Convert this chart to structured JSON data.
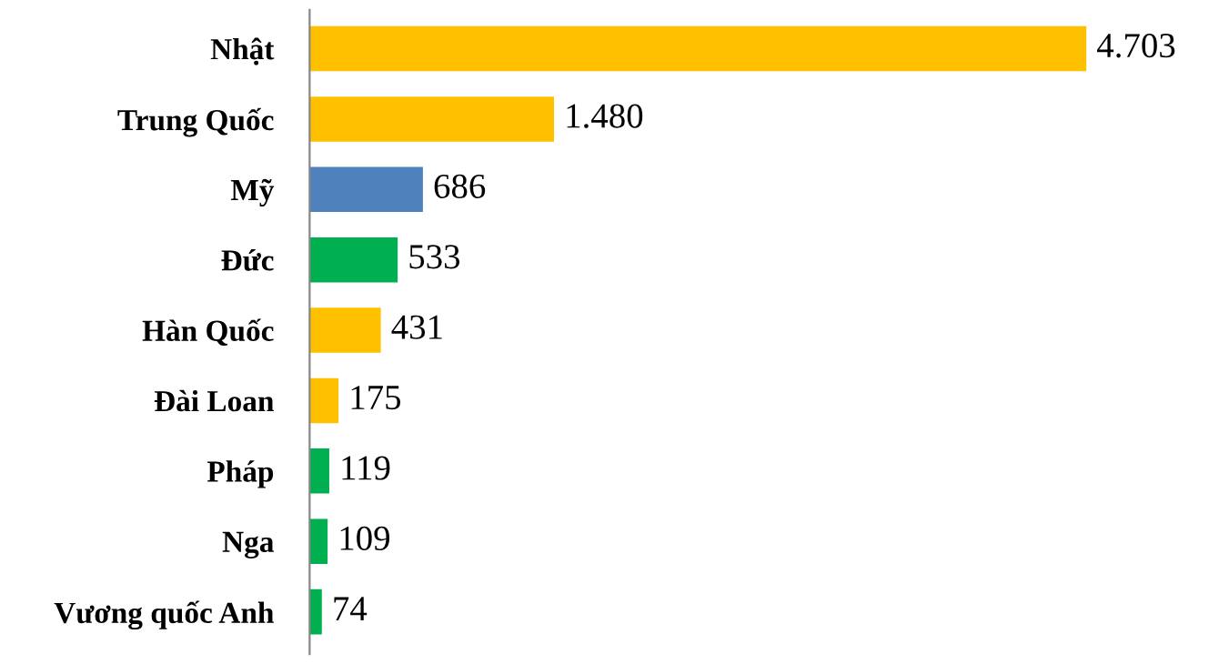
{
  "chart_data": {
    "type": "bar",
    "orientation": "horizontal",
    "categories": [
      "Nhật",
      "Trung Quốc",
      "Mỹ",
      "Đức",
      "Hàn Quốc",
      "Đài Loan",
      "Pháp",
      "Nga",
      "Vương quốc Anh"
    ],
    "values": [
      4703,
      1480,
      686,
      533,
      431,
      175,
      119,
      109,
      74
    ],
    "value_labels": [
      "4.703",
      "1.480",
      "686",
      "533",
      "431",
      "175",
      "119",
      "109",
      "74"
    ],
    "colors": [
      "#ffc000",
      "#ffc000",
      "#4f81bd",
      "#00b050",
      "#ffc000",
      "#ffc000",
      "#00b050",
      "#00b050",
      "#00b050"
    ],
    "grid": false,
    "legend": false
  }
}
